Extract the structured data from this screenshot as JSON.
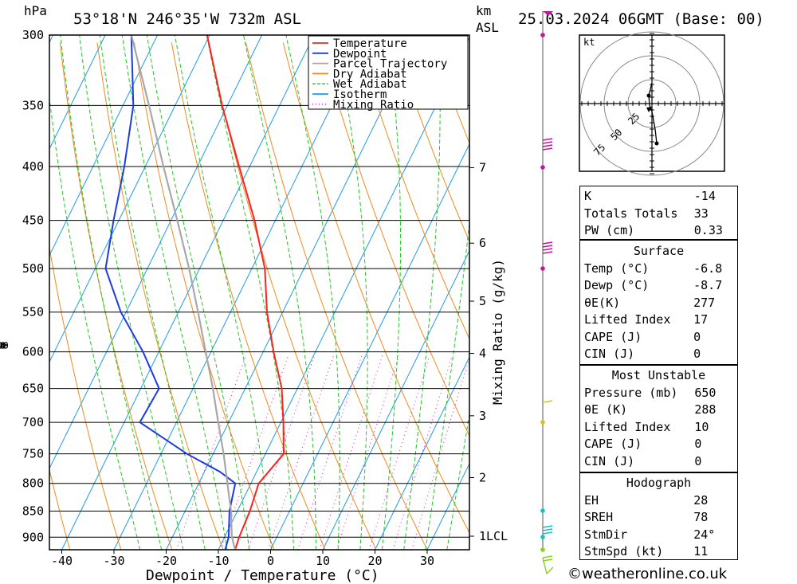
{
  "header": {
    "pressure_unit": "hPa",
    "location": "53°18'N  246°35'W  732m  ASL",
    "height_unit_line1": "km",
    "height_unit_line2": "ASL",
    "datetime": "25.03.2024  06GMT  (Base: 00)"
  },
  "chart_data": {
    "type": "skew-t",
    "pressure_axis": {
      "label": "hPa",
      "ticks": [
        300,
        350,
        400,
        450,
        500,
        550,
        600,
        650,
        700,
        750,
        800,
        850,
        900
      ],
      "range_hpa": [
        300,
        925
      ]
    },
    "temperature_axis": {
      "label": "Dewpoint / Temperature (°C)",
      "ticks": [
        -40,
        -30,
        -20,
        -10,
        0,
        10,
        20,
        30
      ]
    },
    "height_axis": {
      "label": "km ASL",
      "ticks": [
        {
          "km": "7",
          "p": 401
        },
        {
          "km": "6",
          "p": 473
        },
        {
          "km": "5",
          "p": 537
        },
        {
          "km": "4",
          "p": 602
        },
        {
          "km": "3",
          "p": 690
        },
        {
          "km": "2",
          "p": 790
        },
        {
          "km": "1LCL",
          "p": 898
        }
      ]
    },
    "mixing_ratio_axis": {
      "label": "Mixing Ratio (g/kg)",
      "values": [
        1,
        2,
        3,
        4,
        6,
        8,
        10,
        15,
        20,
        25
      ]
    },
    "legend": [
      {
        "name": "Temperature",
        "color": "#ff2020",
        "style": "solid"
      },
      {
        "name": "Dewpoint",
        "color": "#1d3ce0",
        "style": "solid"
      },
      {
        "name": "Parcel Trajectory",
        "color": "#a8a8a8",
        "style": "solid"
      },
      {
        "name": "Dry Adiabat",
        "color": "#f08a1e",
        "style": "solid"
      },
      {
        "name": "Wet Adiabat",
        "color": "#22c822",
        "style": "dashed"
      },
      {
        "name": "Isotherm",
        "color": "#1e9be6",
        "style": "solid"
      },
      {
        "name": "Mixing Ratio",
        "color": "#d020c0",
        "style": "dotted"
      }
    ],
    "series": [
      {
        "name": "Temperature",
        "points": [
          [
            925,
            -6.8
          ],
          [
            900,
            -7.2
          ],
          [
            850,
            -7.6
          ],
          [
            800,
            -8.5
          ],
          [
            750,
            -6.5
          ],
          [
            700,
            -9.5
          ],
          [
            650,
            -13
          ],
          [
            600,
            -18
          ],
          [
            550,
            -23
          ],
          [
            500,
            -27.5
          ],
          [
            450,
            -34
          ],
          [
            400,
            -42
          ],
          [
            350,
            -51
          ],
          [
            300,
            -60.5
          ]
        ]
      },
      {
        "name": "Dewpoint",
        "points": [
          [
            925,
            -8.7
          ],
          [
            900,
            -9.2
          ],
          [
            850,
            -11.5
          ],
          [
            800,
            -13
          ],
          [
            780,
            -17
          ],
          [
            750,
            -25
          ],
          [
            700,
            -37
          ],
          [
            650,
            -36.5
          ],
          [
            600,
            -43
          ],
          [
            550,
            -51
          ],
          [
            500,
            -58
          ],
          [
            450,
            -61
          ],
          [
            400,
            -64
          ],
          [
            350,
            -68
          ],
          [
            300,
            -75
          ]
        ]
      },
      {
        "name": "Parcel Trajectory",
        "points": [
          [
            925,
            -6.8
          ],
          [
            898,
            -8.7
          ],
          [
            850,
            -11.2
          ],
          [
            800,
            -14.5
          ],
          [
            750,
            -18
          ],
          [
            700,
            -22
          ],
          [
            650,
            -26.2
          ],
          [
            600,
            -31
          ],
          [
            550,
            -36.2
          ],
          [
            500,
            -42
          ],
          [
            450,
            -48.8
          ],
          [
            400,
            -56.5
          ],
          [
            350,
            -65
          ],
          [
            300,
            -75
          ]
        ]
      }
    ],
    "wind_profile_colors": [
      "#c0189a",
      "#d4c418",
      "#18c0c0",
      "#8ad418"
    ]
  },
  "hodograph": {
    "unit": "kt",
    "rings": [
      "25",
      "50",
      "75"
    ]
  },
  "indices": {
    "general": [
      {
        "label": "K",
        "value": "-14"
      },
      {
        "label": "Totals Totals",
        "value": "33"
      },
      {
        "label": "PW (cm)",
        "value": "0.33"
      }
    ],
    "surface": {
      "title": "Surface",
      "rows": [
        {
          "label": "Temp (°C)",
          "value": "-6.8"
        },
        {
          "label": "Dewp (°C)",
          "value": "-8.7"
        },
        {
          "label": "θE(K)",
          "value": "277"
        },
        {
          "label": "Lifted Index",
          "value": "17"
        },
        {
          "label": "CAPE (J)",
          "value": "0"
        },
        {
          "label": "CIN (J)",
          "value": "0"
        }
      ]
    },
    "most_unstable": {
      "title": "Most Unstable",
      "rows": [
        {
          "label": "Pressure (mb)",
          "value": "650"
        },
        {
          "label": "θE (K)",
          "value": "288"
        },
        {
          "label": "Lifted Index",
          "value": "10"
        },
        {
          "label": "CAPE (J)",
          "value": "0"
        },
        {
          "label": "CIN (J)",
          "value": "0"
        }
      ]
    },
    "hodograph": {
      "title": "Hodograph",
      "rows": [
        {
          "label": "EH",
          "value": "28"
        },
        {
          "label": "SREH",
          "value": "78"
        },
        {
          "label": "StmDir",
          "value": "24°"
        },
        {
          "label": "StmSpd (kt)",
          "value": "11"
        }
      ]
    }
  },
  "footer": "©weatheronline.co.uk"
}
